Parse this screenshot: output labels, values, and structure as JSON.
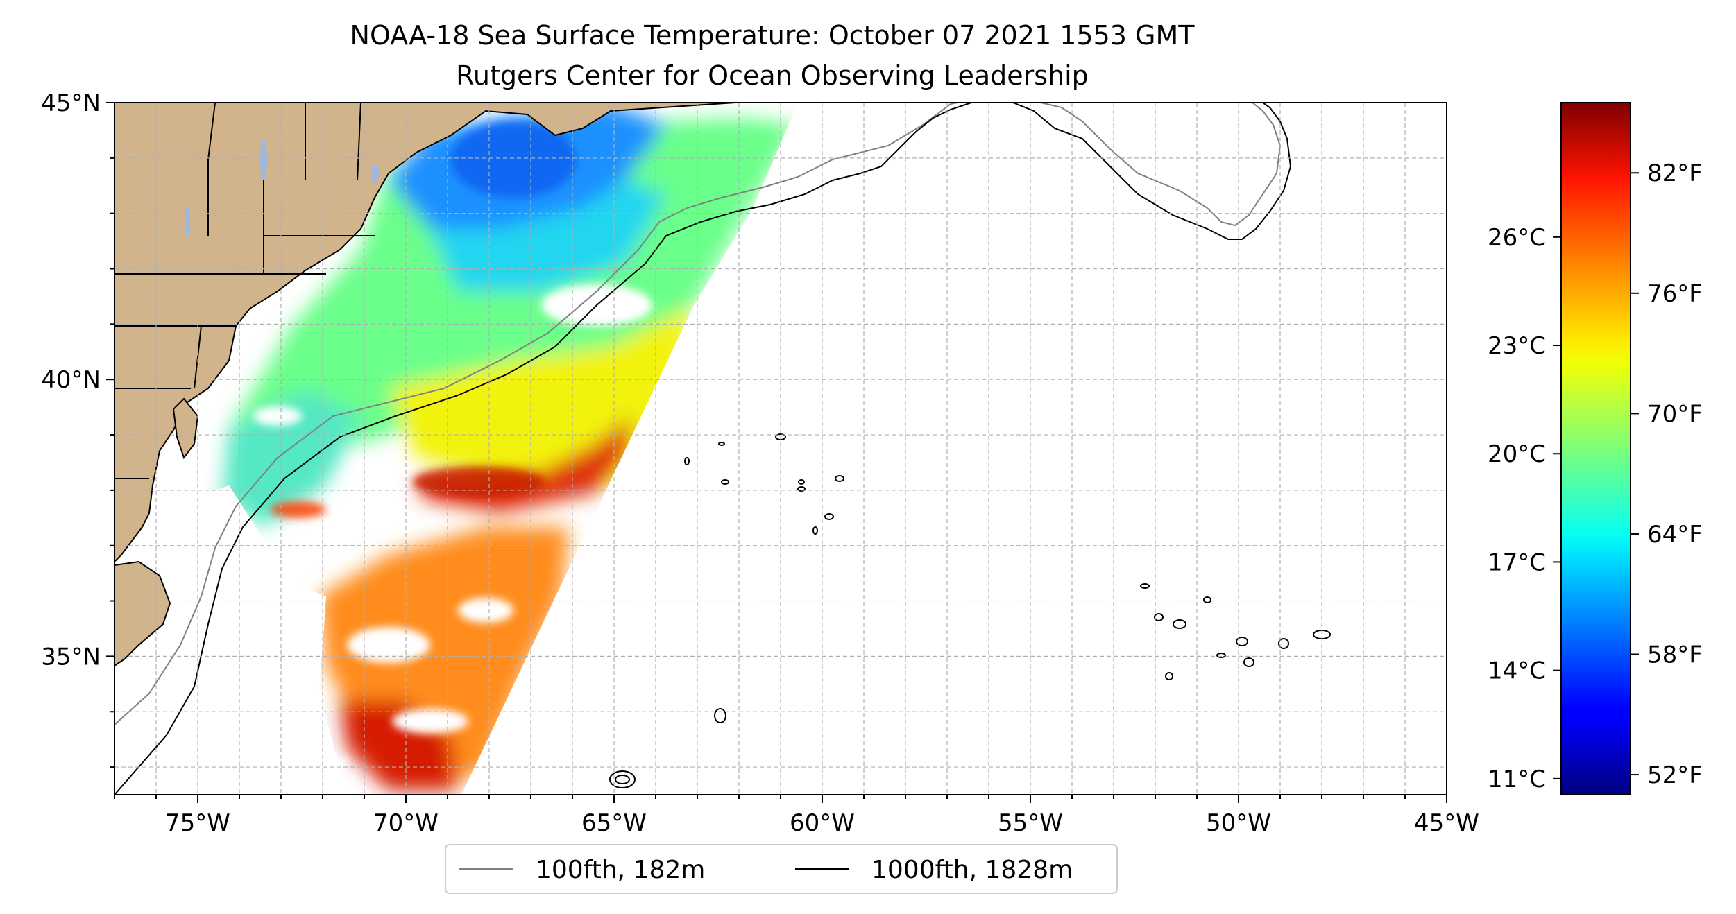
{
  "title": {
    "line1": "NOAA-18 Sea Surface Temperature: October 07 2021 1553 GMT",
    "line2": "Rutgers Center for Ocean Observing Leadership"
  },
  "map": {
    "lon_range": [
      -77,
      -45
    ],
    "lat_range": [
      32.5,
      45
    ],
    "x_ticks": [
      {
        "lon": -75,
        "label": "75°W"
      },
      {
        "lon": -70,
        "label": "70°W"
      },
      {
        "lon": -65,
        "label": "65°W"
      },
      {
        "lon": -60,
        "label": "60°W"
      },
      {
        "lon": -55,
        "label": "55°W"
      },
      {
        "lon": -50,
        "label": "50°W"
      },
      {
        "lon": -45,
        "label": "45°W"
      }
    ],
    "y_ticks": [
      {
        "lat": 45,
        "label": "45°N"
      },
      {
        "lat": 40,
        "label": "40°N"
      },
      {
        "lat": 35,
        "label": "35°N"
      }
    ],
    "grid": true,
    "land_color": "#D2B48C"
  },
  "colorbar": {
    "colormap": "jet",
    "f_range": [
      51.0,
      85.5
    ],
    "fahrenheit_ticks": [
      {
        "value": 52,
        "label": "52°F"
      },
      {
        "value": 58,
        "label": "58°F"
      },
      {
        "value": 64,
        "label": "64°F"
      },
      {
        "value": 70,
        "label": "70°F"
      },
      {
        "value": 76,
        "label": "76°F"
      },
      {
        "value": 82,
        "label": "82°F"
      }
    ],
    "celsius_ticks": [
      {
        "value": 11,
        "label": "11°C"
      },
      {
        "value": 14,
        "label": "14°C"
      },
      {
        "value": 17,
        "label": "17°C"
      },
      {
        "value": 20,
        "label": "20°C"
      },
      {
        "value": 23,
        "label": "23°C"
      },
      {
        "value": 26,
        "label": "26°C"
      }
    ]
  },
  "legend": {
    "items": [
      {
        "label": "100fth, 182m",
        "color": "#808080"
      },
      {
        "label": "1000fth, 1828m",
        "color": "#000000"
      }
    ]
  }
}
